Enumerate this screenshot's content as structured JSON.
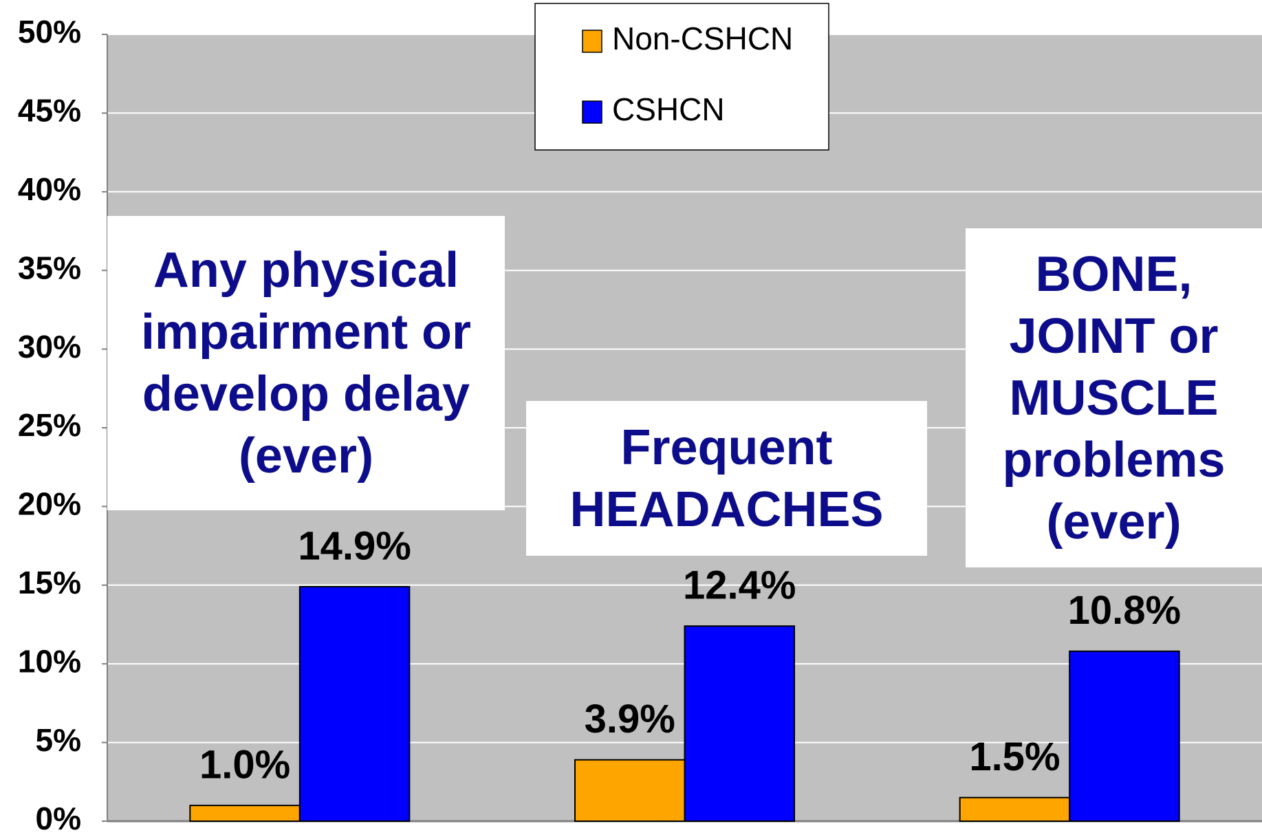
{
  "chart_data": {
    "type": "bar",
    "categories": [
      "Any physical impairment or develop delay (ever)",
      "Frequent HEADACHES",
      "BONE, JOINT or MUSCLE problems (ever)"
    ],
    "series": [
      {
        "name": "Non-CSHCN",
        "color": "#ffa500",
        "values": [
          1.0,
          3.9,
          1.5
        ],
        "value_labels": [
          "1.0%",
          "3.9%",
          "1.5%"
        ]
      },
      {
        "name": "CSHCN",
        "color": "#0000ff",
        "values": [
          14.9,
          12.4,
          10.8
        ],
        "value_labels": [
          "14.9%",
          "12.4%",
          "10.8%"
        ]
      }
    ],
    "ylim": [
      0,
      50
    ],
    "yticks": [
      {
        "value": 0,
        "label": "0%"
      },
      {
        "value": 5,
        "label": "5%"
      },
      {
        "value": 10,
        "label": "10%"
      },
      {
        "value": 15,
        "label": "15%"
      },
      {
        "value": 20,
        "label": "20%"
      },
      {
        "value": 25,
        "label": "25%"
      },
      {
        "value": 30,
        "label": "30%"
      },
      {
        "value": 35,
        "label": "35%"
      },
      {
        "value": 40,
        "label": "40%"
      },
      {
        "value": 45,
        "label": "45%"
      },
      {
        "value": 50,
        "label": "50%"
      }
    ],
    "grid": true,
    "legend": "top"
  }
}
